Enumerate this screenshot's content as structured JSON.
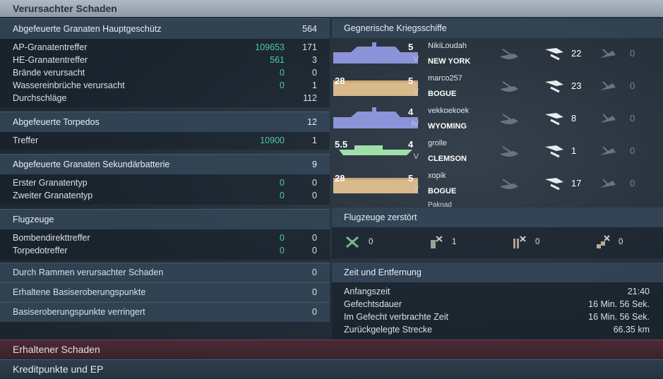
{
  "title": "Verursachter Schaden",
  "left": {
    "main_guns": {
      "header": "Abgefeuerte Granaten Hauptgeschütz",
      "header_value": "564",
      "rows": [
        {
          "label": "AP-Granatentreffer",
          "mid": "109653",
          "val": "171"
        },
        {
          "label": "HE-Granatentreffer",
          "mid": "561",
          "val": "3"
        },
        {
          "label": "Brände verursacht",
          "mid": "0",
          "val": "0"
        },
        {
          "label": "Wassereinbrüche verursacht",
          "mid": "0",
          "val": "1"
        },
        {
          "label": "Durchschläge",
          "mid": "",
          "val": "112"
        }
      ]
    },
    "torpedos": {
      "header": "Abgefeuerte Torpedos",
      "header_value": "12",
      "rows": [
        {
          "label": "Treffer",
          "mid": "10900",
          "val": "1"
        }
      ]
    },
    "secondary": {
      "header": "Abgefeuerte Granaten Sekundärbatterie",
      "header_value": "9",
      "rows": [
        {
          "label": "Erster Granatentyp",
          "mid": "0",
          "val": "0"
        },
        {
          "label": "Zweiter Granatentyp",
          "mid": "0",
          "val": "0"
        }
      ]
    },
    "aircraft": {
      "header": "Flugzeuge",
      "header_value": "",
      "rows": [
        {
          "label": "Bombendirekttreffer",
          "mid": "0",
          "val": "0"
        },
        {
          "label": "Torpedotreffer",
          "mid": "0",
          "val": "0"
        }
      ]
    },
    "singles": [
      {
        "label": "Durch Rammen verursachter Schaden",
        "val": "0"
      },
      {
        "label": "Erhaltene Basiseroberungspunkte",
        "val": "0"
      },
      {
        "label": "Basiseroberungspunkte verringert",
        "val": "0"
      }
    ]
  },
  "enemy": {
    "header": "Gegnerische Kriegsschiffe",
    "ships": [
      {
        "player": "NikiLoudah",
        "ship": "NEW YORK",
        "tier": "V",
        "class_code": "5",
        "spotted": "22",
        "destroyed": "0",
        "kind": "bb"
      },
      {
        "player": "marco257",
        "ship": "BOGUE",
        "tier": "V",
        "class_code": "5",
        "spotted": "23",
        "destroyed": "0",
        "kind": "cv",
        "stern_code": "28"
      },
      {
        "player": "vekkoekoek",
        "ship": "WYOMING",
        "tier": "IV",
        "class_code": "4",
        "spotted": "8",
        "destroyed": "0",
        "kind": "bb"
      },
      {
        "player": "grolle",
        "ship": "CLEMSON",
        "tier": "V",
        "class_code": "4",
        "spotted": "1",
        "destroyed": "0",
        "kind": "dd",
        "stern_code": "5.5"
      },
      {
        "player": "xopik",
        "ship": "BOGUE",
        "tier": "V",
        "class_code": "5",
        "spotted": "17",
        "destroyed": "0",
        "kind": "cv",
        "stern_code": "28"
      }
    ],
    "partial_player": "Paknad"
  },
  "planes": {
    "header": "Flugzeuge zerstört",
    "items": [
      {
        "icon": "fighter-icon",
        "value": "0"
      },
      {
        "icon": "bomber-squad-icon",
        "value": "1"
      },
      {
        "icon": "torpedo-bomber-icon",
        "value": "0"
      },
      {
        "icon": "dive-bomber-icon",
        "value": "0"
      }
    ]
  },
  "time": {
    "header": "Zeit und Entfernung",
    "rows": [
      {
        "label": "Anfangszeit",
        "value": "21:40"
      },
      {
        "label": "Gefechtsdauer",
        "value": "16 Min. 56 Sek."
      },
      {
        "label": "Im Gefecht verbrachte Zeit",
        "value": "16 Min. 56 Sek."
      },
      {
        "label": "Zurückgelegte Strecke",
        "value": "66.35 km"
      }
    ]
  },
  "bottom": {
    "received": "Erhaltener Schaden",
    "credits": "Kreditpunkte und EP"
  },
  "colors": {
    "accent_green": "#4fc9a4",
    "bb_hull": "#8b94d8",
    "cv_hull": "#d7b98c",
    "dd_hull": "#9fe0a8"
  }
}
